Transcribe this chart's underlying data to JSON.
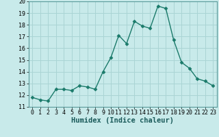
{
  "x": [
    0,
    1,
    2,
    3,
    4,
    5,
    6,
    7,
    8,
    9,
    10,
    11,
    12,
    13,
    14,
    15,
    16,
    17,
    18,
    19,
    20,
    21,
    22,
    23
  ],
  "y": [
    11.8,
    11.6,
    11.5,
    12.5,
    12.5,
    12.4,
    12.8,
    12.7,
    12.5,
    14.0,
    15.2,
    17.1,
    16.4,
    18.3,
    17.9,
    17.7,
    19.6,
    19.4,
    16.7,
    14.8,
    14.3,
    13.4,
    13.2,
    12.8
  ],
  "line_color": "#1a7a6a",
  "marker": "D",
  "marker_size": 2.5,
  "bg_color": "#c8eaea",
  "grid_color": "#aad4d4",
  "xlabel": "Humidex (Indice chaleur)",
  "ylim": [
    11,
    20
  ],
  "xlim": [
    -0.5,
    23.5
  ],
  "yticks": [
    11,
    12,
    13,
    14,
    15,
    16,
    17,
    18,
    19,
    20
  ],
  "xticks": [
    0,
    1,
    2,
    3,
    4,
    5,
    6,
    7,
    8,
    9,
    10,
    11,
    12,
    13,
    14,
    15,
    16,
    17,
    18,
    19,
    20,
    21,
    22,
    23
  ],
  "tick_fontsize": 6.0,
  "xlabel_fontsize": 7.5,
  "line_width": 1.0
}
